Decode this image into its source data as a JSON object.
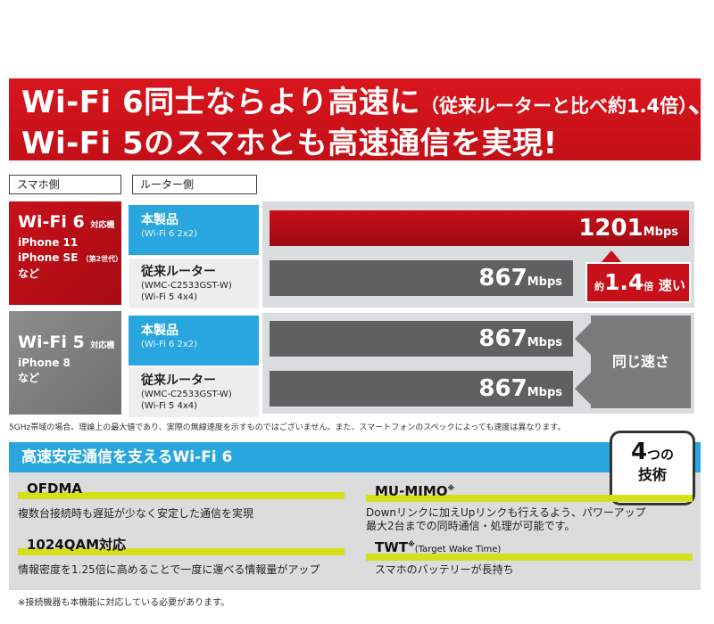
{
  "headline": {
    "line1_main": "Wi-Fi 6同士ならより高速に",
    "line1_sub": "（従来ルーターと比べ約1.4倍）",
    "line1_end": "、",
    "line2": "Wi-Fi 5のスマホとも高速通信を実現!"
  },
  "columns": {
    "phone_header": "スマホ側",
    "router_header": "ルーター側"
  },
  "phones": [
    {
      "standard": "Wi-Fi 6",
      "compat": "対応機",
      "models": [
        "iPhone 11",
        "iPhone SE",
        "など"
      ],
      "model_note": "（第2世代）"
    },
    {
      "standard": "Wi-Fi 5",
      "compat": "対応機",
      "models": [
        "iPhone 8",
        "など"
      ]
    }
  ],
  "routers": [
    {
      "name": "本製品",
      "spec1": "(Wi-Fi 6 2x2)",
      "spec2": ""
    },
    {
      "name": "従来ルーター",
      "spec1": "(WMC-C2533GST-W)",
      "spec2": "(Wi-Fi 5 4x4)"
    },
    {
      "name": "本製品",
      "spec1": "(Wi-Fi 6 2x2)",
      "spec2": ""
    },
    {
      "name": "従来ルーター",
      "spec1": "(WMC-C2533GST-W)",
      "spec2": "(Wi-Fi 5 4x4)"
    }
  ],
  "speeds": [
    {
      "value": "1201",
      "unit": "Mbps",
      "color": "#c8101a"
    },
    {
      "value": "867",
      "unit": "Mbps",
      "color": "#606060"
    },
    {
      "value": "867",
      "unit": "Mbps",
      "color": "#606060"
    },
    {
      "value": "867",
      "unit": "Mbps",
      "color": "#606060"
    }
  ],
  "callout": {
    "pre": "約",
    "value": "1.4",
    "mid": "倍",
    "post": "速い"
  },
  "same_speed": "同じ速さ",
  "note_top": "5GHz帯域の場合。理論上の最大値であり、実際の無線速度を示すものではございません。また、スマートフォンのスペックによっても速度は異なります。",
  "panel": {
    "title": "高速安定通信を支えるWi-Fi 6",
    "badge": {
      "number": "4",
      "suffix": "つの",
      "word": "技術"
    },
    "features": [
      {
        "title": "OFDMA",
        "mark": "",
        "extra": "",
        "desc": [
          "複数台接続時も遅延が少なく安定した通信を実現"
        ]
      },
      {
        "title": "MU-MIMO",
        "mark": "※",
        "extra": "",
        "desc": [
          "Downリンクに加えUpリンクも行えるよう、パワーアップ",
          "最大2台までの同時通信・処理が可能です。"
        ]
      },
      {
        "title": "1024QAM対応",
        "mark": "",
        "extra": "",
        "desc": [
          "情報密度を1.25倍に高めることで一度に運べる情報量がアップ"
        ]
      },
      {
        "title": "TWT",
        "mark": "※",
        "extra": "(Target Wake Time)",
        "desc": [
          "スマホのバッテリーが長持ち"
        ]
      }
    ]
  },
  "note_bottom": "※接続機器も本機能に対応している必要があります。",
  "colors": {
    "brand_red": "#c8101a",
    "accent_blue": "#29a6dd",
    "highlight_yellow": "#d6e01a",
    "bar_gray": "#606060"
  }
}
